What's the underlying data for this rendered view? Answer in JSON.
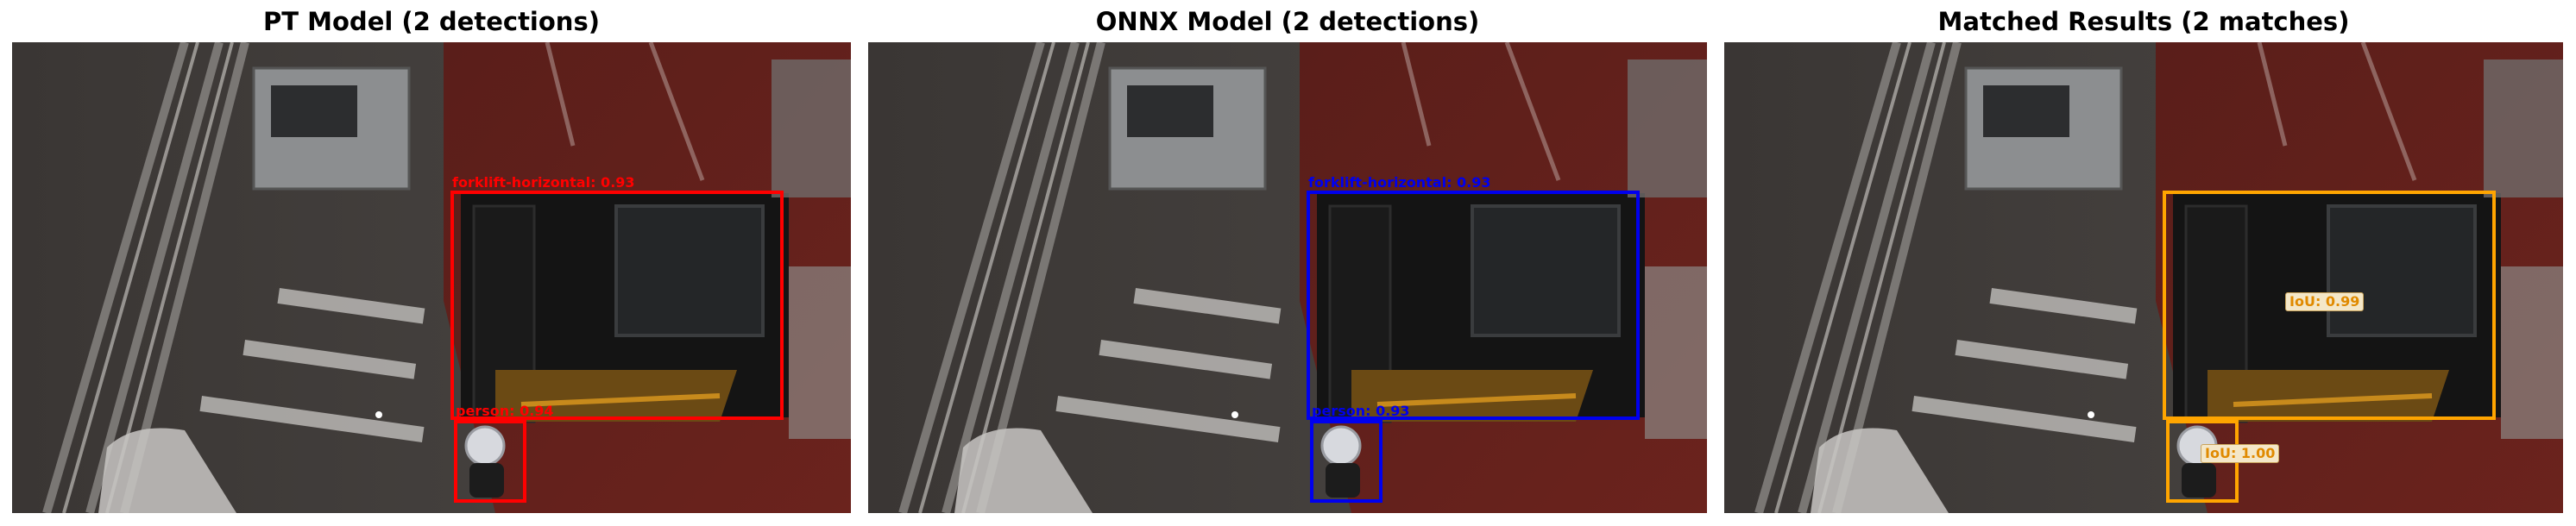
{
  "panels": [
    {
      "title": "PT Model (2 detections)",
      "box_color": "#ff0000",
      "detections": [
        {
          "label": "forklift-horizontal: 0.93"
        },
        {
          "label": "person: 0.94"
        }
      ]
    },
    {
      "title": "ONNX Model (2 detections)",
      "box_color": "#0000ee",
      "detections": [
        {
          "label": "forklift-horizontal: 0.93"
        },
        {
          "label": "person: 0.93"
        }
      ]
    },
    {
      "title": "Matched Results (2 matches)",
      "box_color": "#ffa500",
      "matches": [
        {
          "label": "IoU: 0.99"
        },
        {
          "label": "IoU: 1.00"
        }
      ]
    }
  ]
}
